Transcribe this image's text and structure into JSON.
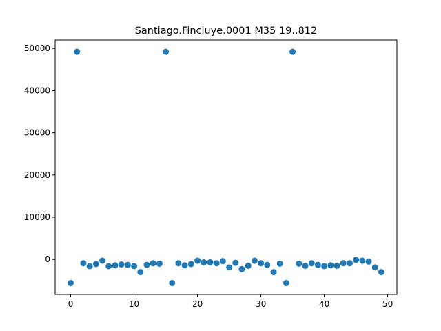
{
  "chart_data": {
    "type": "scatter",
    "title": "Santiago.Fincluye.0001 M35 19..812",
    "xlabel": "",
    "ylabel": "",
    "xlim": [
      -2.45,
      51.45
    ],
    "ylim": [
      -8300,
      52000
    ],
    "x_ticks": [
      0,
      10,
      20,
      30,
      40,
      50
    ],
    "y_ticks": [
      0,
      10000,
      20000,
      30000,
      40000,
      50000
    ],
    "grid": false,
    "point_color": "#1f77b4",
    "series": [
      {
        "x": [
          0,
          1,
          2,
          3,
          4,
          5,
          6,
          7,
          8,
          9,
          10,
          11,
          12,
          13,
          14,
          15,
          16,
          17,
          18,
          19,
          20,
          21,
          22,
          23,
          24,
          25,
          26,
          27,
          28,
          29,
          30,
          31,
          32,
          33,
          34,
          35,
          36,
          37,
          38,
          39,
          40,
          41,
          42,
          43,
          44,
          45,
          46,
          47,
          48,
          49
        ],
        "y": [
          -5600,
          49200,
          -900,
          -1600,
          -1100,
          -300,
          -1600,
          -1400,
          -1200,
          -1300,
          -1600,
          -3000,
          -1300,
          -900,
          -1000,
          49200,
          -5600,
          -900,
          -1400,
          -1100,
          -300,
          -700,
          -700,
          -900,
          -400,
          -1900,
          -800,
          -2300,
          -1500,
          -300,
          -900,
          -1300,
          -3000,
          -1000,
          -5600,
          49200,
          -1000,
          -1500,
          -900,
          -1300,
          -1600,
          -1400,
          -1500,
          -900,
          -900,
          -100,
          -300,
          -500,
          -1900,
          -3000
        ]
      }
    ]
  }
}
